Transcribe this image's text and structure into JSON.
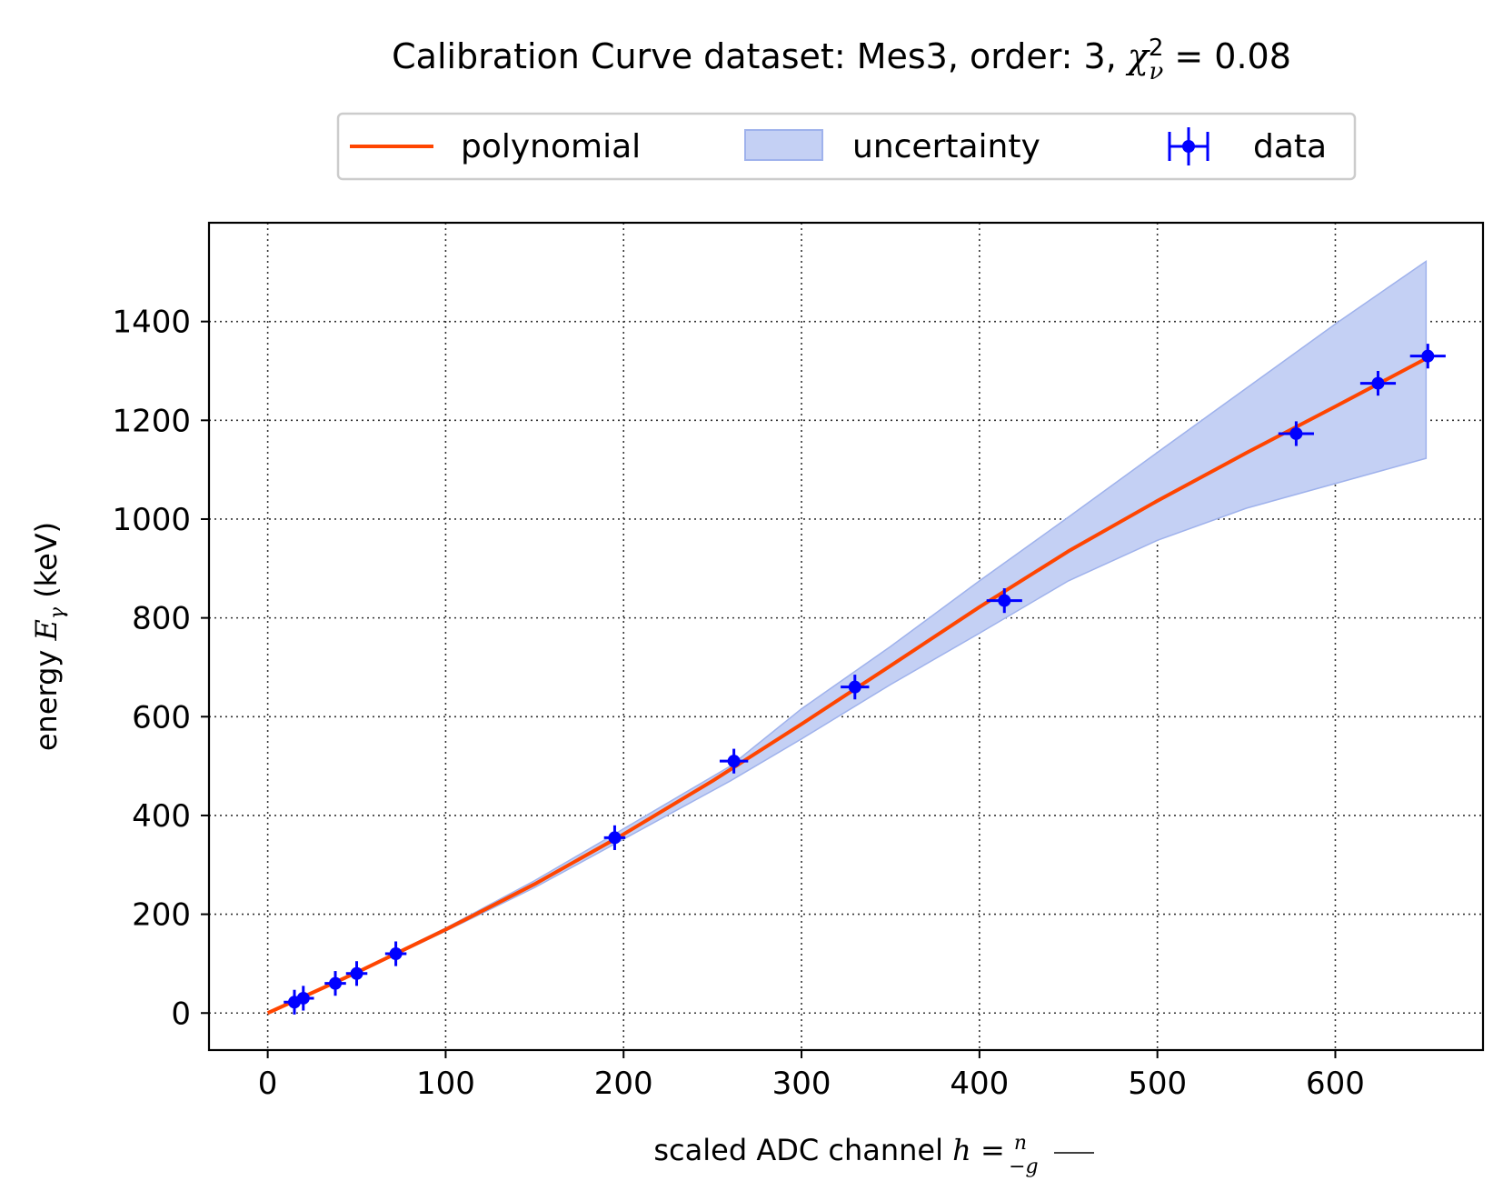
{
  "chart_data": {
    "type": "line",
    "title": "Calibration Curve dataset: Mes3, order: 3, χ²ᵥ =  0.08",
    "title_parts": {
      "prefix": "Calibration Curve dataset: Mes3, order: 3, ",
      "chi": "χ",
      "chi_sup": "2",
      "chi_sub": "ν",
      "suffix": " =  0.08"
    },
    "xlabel": "scaled ADC channel h = n/−g",
    "xlabel_parts": {
      "prefix": "scaled ADC channel ",
      "h": "h",
      "eq": " = ",
      "num": "n",
      "den": "−g"
    },
    "ylabel": "energy E_γ (keV)",
    "ylabel_parts": {
      "prefix": "energy ",
      "E": "E",
      "sub": "γ",
      "suffix": " (keV)"
    },
    "xlim": [
      -33,
      683
    ],
    "ylim": [
      -75,
      1600
    ],
    "xticks": [
      0,
      100,
      200,
      300,
      400,
      500,
      600
    ],
    "yticks": [
      0,
      200,
      400,
      600,
      800,
      1000,
      1200,
      1400
    ],
    "grid": true,
    "legend": {
      "placement": "top-center, outside",
      "entries": [
        "polynomial",
        "uncertainty",
        "data"
      ]
    },
    "colors": {
      "polynomial": "#ff4500",
      "uncertainty_fill": "#c4d0f4",
      "uncertainty_edge": "#9fb2ec",
      "data": "#0000ff"
    },
    "polynomial": {
      "x": [
        0,
        50,
        100,
        150,
        200,
        250,
        300,
        350,
        400,
        450,
        500,
        550,
        600,
        651
      ],
      "y": [
        0,
        82,
        169,
        261,
        362,
        470,
        585,
        703,
        822,
        935,
        1037,
        1134,
        1228,
        1325
      ]
    },
    "uncertainty": {
      "x": [
        0,
        50,
        100,
        150,
        200,
        260,
        300,
        350,
        400,
        450,
        500,
        550,
        600,
        651
      ],
      "upper": [
        0,
        84,
        172,
        268,
        373,
        500,
        616,
        742,
        875,
        1004,
        1135,
        1265,
        1395,
        1522
      ],
      "lower": [
        0,
        80,
        166,
        254,
        352,
        470,
        555,
        665,
        769,
        875,
        957,
        1022,
        1072,
        1123
      ]
    },
    "data": {
      "x": [
        15,
        20,
        38,
        50,
        72,
        195,
        262,
        330,
        414,
        578,
        624,
        652
      ],
      "y": [
        22,
        30,
        60,
        80,
        120,
        355,
        510,
        660,
        835,
        1173,
        1275,
        1330
      ],
      "xerr": [
        6,
        6,
        6,
        6,
        6,
        6,
        8,
        8,
        10,
        10,
        10,
        10
      ],
      "yerr": [
        25,
        25,
        25,
        25,
        25,
        25,
        25,
        25,
        25,
        25,
        25,
        25
      ]
    }
  }
}
